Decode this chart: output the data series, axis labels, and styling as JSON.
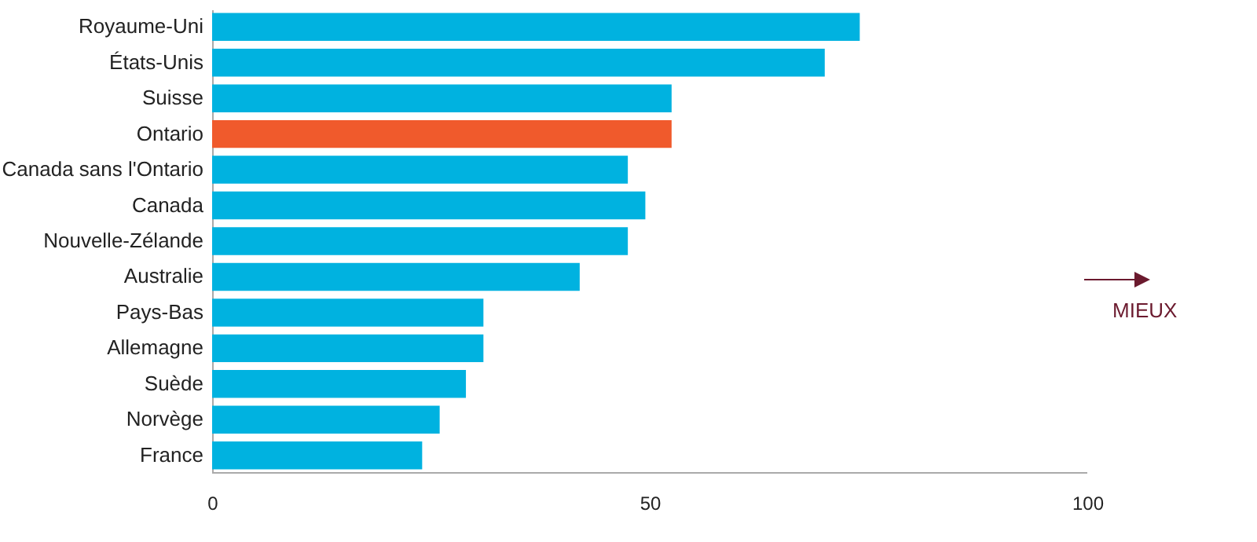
{
  "chart_data": {
    "type": "bar",
    "orientation": "horizontal",
    "categories": [
      "Royaume-Uni",
      "États-Unis",
      "Suisse",
      "Ontario",
      "Canada sans l'Ontario",
      "Canada",
      "Nouvelle-Zélande",
      "Australie",
      "Pays-Bas",
      "Allemagne",
      "Suède",
      "Norvège",
      "France"
    ],
    "values": [
      74,
      70,
      52.5,
      52.5,
      47.5,
      49.5,
      47.5,
      42,
      31,
      31,
      29,
      26,
      24
    ],
    "colors": [
      "#00b2e0",
      "#00b2e0",
      "#00b2e0",
      "#f05a2c",
      "#00b2e0",
      "#00b2e0",
      "#00b2e0",
      "#00b2e0",
      "#00b2e0",
      "#00b2e0",
      "#00b2e0",
      "#00b2e0",
      "#00b2e0"
    ],
    "xlim": [
      0,
      100
    ],
    "xticks": [
      0,
      50,
      100
    ],
    "grid": false,
    "annotations": [
      "MIEUX"
    ]
  }
}
